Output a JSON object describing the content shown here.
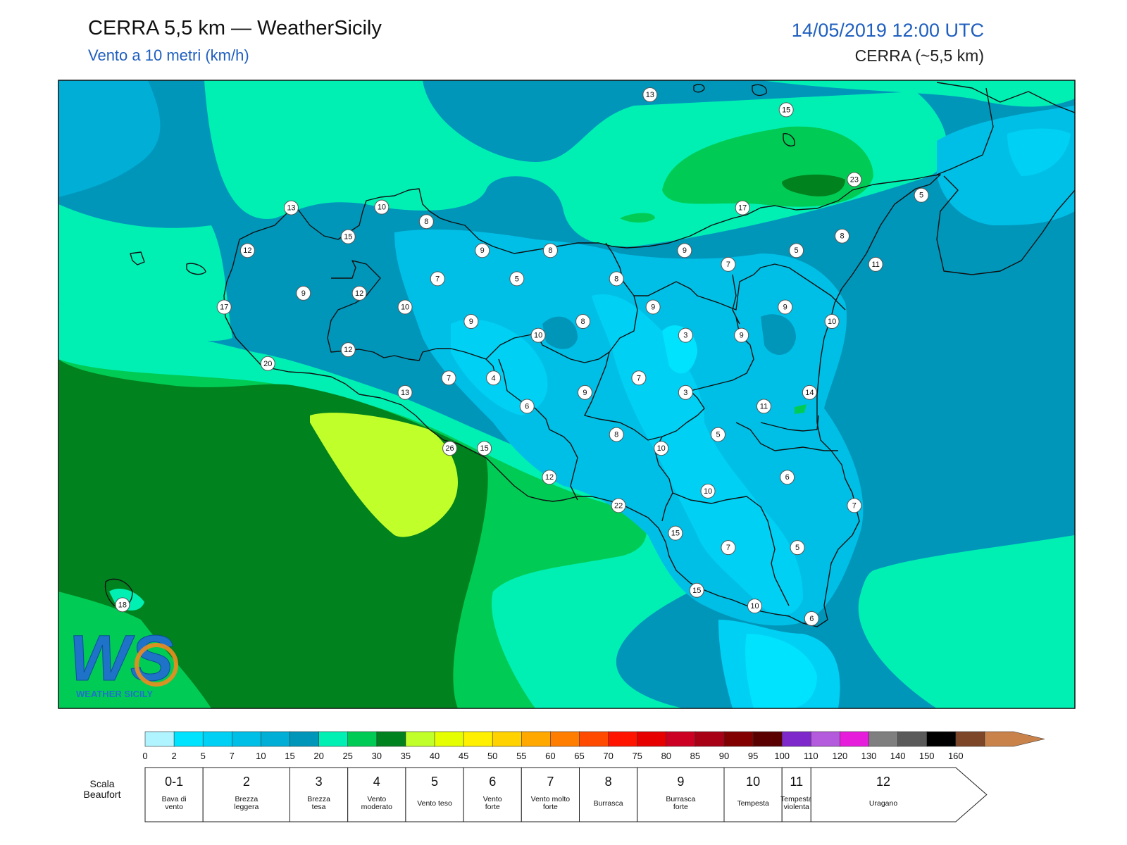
{
  "header": {
    "title": "CERRA 5,5 km — WeatherSicily",
    "subtitle": "Vento a 10 metri (km/h)",
    "datetime": "14/05/2019 12:00 UTC",
    "model": "CERRA (~5,5 km)"
  },
  "map_labels": [
    {
      "value": "13",
      "lon": 0.582,
      "lat": 0.023
    },
    {
      "value": "15",
      "lon": 0.716,
      "lat": 0.047
    },
    {
      "value": "23",
      "lon": 0.783,
      "lat": 0.158
    },
    {
      "value": "5",
      "lon": 0.849,
      "lat": 0.183
    },
    {
      "value": "13",
      "lon": 0.229,
      "lat": 0.203
    },
    {
      "value": "10",
      "lon": 0.318,
      "lat": 0.202
    },
    {
      "value": "17",
      "lon": 0.673,
      "lat": 0.203
    },
    {
      "value": "8",
      "lon": 0.362,
      "lat": 0.225
    },
    {
      "value": "15",
      "lon": 0.285,
      "lat": 0.249
    },
    {
      "value": "8",
      "lon": 0.771,
      "lat": 0.248
    },
    {
      "value": "12",
      "lon": 0.186,
      "lat": 0.271
    },
    {
      "value": "9",
      "lon": 0.417,
      "lat": 0.271
    },
    {
      "value": "8",
      "lon": 0.484,
      "lat": 0.271
    },
    {
      "value": "9",
      "lon": 0.616,
      "lat": 0.271
    },
    {
      "value": "5",
      "lon": 0.726,
      "lat": 0.271
    },
    {
      "value": "7",
      "lon": 0.659,
      "lat": 0.293
    },
    {
      "value": "11",
      "lon": 0.804,
      "lat": 0.293
    },
    {
      "value": "7",
      "lon": 0.373,
      "lat": 0.316
    },
    {
      "value": "5",
      "lon": 0.451,
      "lat": 0.316
    },
    {
      "value": "8",
      "lon": 0.549,
      "lat": 0.316
    },
    {
      "value": "9",
      "lon": 0.241,
      "lat": 0.339
    },
    {
      "value": "12",
      "lon": 0.296,
      "lat": 0.339
    },
    {
      "value": "17",
      "lon": 0.163,
      "lat": 0.361
    },
    {
      "value": "10",
      "lon": 0.341,
      "lat": 0.361
    },
    {
      "value": "9",
      "lon": 0.585,
      "lat": 0.361
    },
    {
      "value": "9",
      "lon": 0.715,
      "lat": 0.361
    },
    {
      "value": "9",
      "lon": 0.406,
      "lat": 0.384
    },
    {
      "value": "8",
      "lon": 0.516,
      "lat": 0.384
    },
    {
      "value": "10",
      "lon": 0.761,
      "lat": 0.384
    },
    {
      "value": "10",
      "lon": 0.472,
      "lat": 0.406
    },
    {
      "value": "3",
      "lon": 0.617,
      "lat": 0.406
    },
    {
      "value": "9",
      "lon": 0.672,
      "lat": 0.406
    },
    {
      "value": "12",
      "lon": 0.285,
      "lat": 0.429
    },
    {
      "value": "20",
      "lon": 0.206,
      "lat": 0.451
    },
    {
      "value": "7",
      "lon": 0.384,
      "lat": 0.474
    },
    {
      "value": "4",
      "lon": 0.428,
      "lat": 0.474
    },
    {
      "value": "7",
      "lon": 0.571,
      "lat": 0.474
    },
    {
      "value": "13",
      "lon": 0.341,
      "lat": 0.497
    },
    {
      "value": "9",
      "lon": 0.518,
      "lat": 0.497
    },
    {
      "value": "3",
      "lon": 0.617,
      "lat": 0.497
    },
    {
      "value": "14",
      "lon": 0.739,
      "lat": 0.497
    },
    {
      "value": "6",
      "lon": 0.461,
      "lat": 0.519
    },
    {
      "value": "11",
      "lon": 0.694,
      "lat": 0.519
    },
    {
      "value": "8",
      "lon": 0.549,
      "lat": 0.564
    },
    {
      "value": "5",
      "lon": 0.649,
      "lat": 0.564
    },
    {
      "value": "26",
      "lon": 0.385,
      "lat": 0.586
    },
    {
      "value": "15",
      "lon": 0.419,
      "lat": 0.586
    },
    {
      "value": "10",
      "lon": 0.593,
      "lat": 0.586
    },
    {
      "value": "12",
      "lon": 0.483,
      "lat": 0.632
    },
    {
      "value": "6",
      "lon": 0.717,
      "lat": 0.632
    },
    {
      "value": "10",
      "lon": 0.639,
      "lat": 0.654
    },
    {
      "value": "22",
      "lon": 0.551,
      "lat": 0.677
    },
    {
      "value": "7",
      "lon": 0.783,
      "lat": 0.677
    },
    {
      "value": "15",
      "lon": 0.607,
      "lat": 0.721
    },
    {
      "value": "7",
      "lon": 0.659,
      "lat": 0.744
    },
    {
      "value": "5",
      "lon": 0.727,
      "lat": 0.744
    },
    {
      "value": "15",
      "lon": 0.628,
      "lat": 0.812
    },
    {
      "value": "10",
      "lon": 0.685,
      "lat": 0.837
    },
    {
      "value": "6",
      "lon": 0.741,
      "lat": 0.857
    },
    {
      "value": "18",
      "lon": 0.063,
      "lat": 0.835
    }
  ],
  "logo": {
    "letters": "WS",
    "text": "WEATHER SICILY"
  },
  "colorbar": {
    "ticks": [
      "0",
      "2",
      "5",
      "7",
      "10",
      "15",
      "20",
      "25",
      "30",
      "35",
      "40",
      "45",
      "50",
      "55",
      "60",
      "65",
      "70",
      "75",
      "80",
      "85",
      "90",
      "95",
      "100",
      "110",
      "120",
      "130",
      "140",
      "150",
      "160"
    ],
    "colors": [
      "#b0f4ff",
      "#00e3ff",
      "#00d0f4",
      "#00bfe6",
      "#00aed6",
      "#0096ba",
      "#00f0b4",
      "#00cc55",
      "#00821e",
      "#c0ff2a",
      "#e6ff00",
      "#fff000",
      "#ffd200",
      "#ffa800",
      "#ff7e00",
      "#ff4a00",
      "#ff1400",
      "#e60000",
      "#cc0022",
      "#a80014",
      "#820000",
      "#5a0000",
      "#7e28cc",
      "#b45adc",
      "#e61edc",
      "#7f7f7f",
      "#5a5a5a",
      "#000000",
      "#7d4628",
      "#c8824a"
    ]
  },
  "beaufort": {
    "label_line1": "Scala",
    "label_line2": "Beaufort",
    "classes": [
      {
        "num": "0-1",
        "desc": [
          "Bava di",
          "vento"
        ],
        "from": 0,
        "to": 2
      },
      {
        "num": "2",
        "desc": [
          "Brezza",
          "leggera"
        ],
        "from": 2,
        "to": 5
      },
      {
        "num": "3",
        "desc": [
          "Brezza",
          "tesa"
        ],
        "from": 5,
        "to": 7
      },
      {
        "num": "4",
        "desc": [
          "Vento",
          "moderato"
        ],
        "from": 7,
        "to": 9
      },
      {
        "num": "5",
        "desc": [
          "Vento teso"
        ],
        "from": 9,
        "to": 11
      },
      {
        "num": "6",
        "desc": [
          "Vento",
          "forte"
        ],
        "from": 11,
        "to": 13
      },
      {
        "num": "7",
        "desc": [
          "Vento molto",
          "forte"
        ],
        "from": 13,
        "to": 15
      },
      {
        "num": "8",
        "desc": [
          "Burrasca"
        ],
        "from": 15,
        "to": 17
      },
      {
        "num": "9",
        "desc": [
          "Burrasca",
          "forte"
        ],
        "from": 17,
        "to": 20
      },
      {
        "num": "10",
        "desc": [
          "Tempesta"
        ],
        "from": 20,
        "to": 22
      },
      {
        "num": "11",
        "desc": [
          "Tempesta",
          "violenta"
        ],
        "from": 22,
        "to": 23
      },
      {
        "num": "12",
        "desc": [
          "Uragano"
        ],
        "from": 23,
        "to": 28
      }
    ]
  }
}
